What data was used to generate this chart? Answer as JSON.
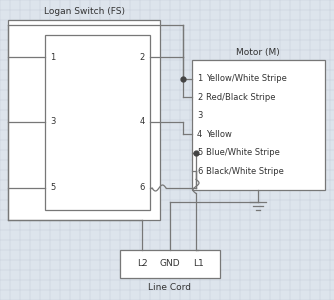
{
  "background_color": "#dde4ec",
  "grid_color": "#c5cdd8",
  "line_color": "#777777",
  "text_color": "#333333",
  "title_logan": "Logan Switch (FS)",
  "title_motor": "Motor (M)",
  "title_linecord": "Line Cord",
  "motor_labels": [
    "1  Yellow/White Stripe",
    "2  Red/Black Stripe",
    "3",
    "4  Yellow",
    "5  Blue/White Stripe",
    "6  Black/White Stripe"
  ],
  "linecord_labels": [
    "L2",
    "GND",
    "L1"
  ]
}
